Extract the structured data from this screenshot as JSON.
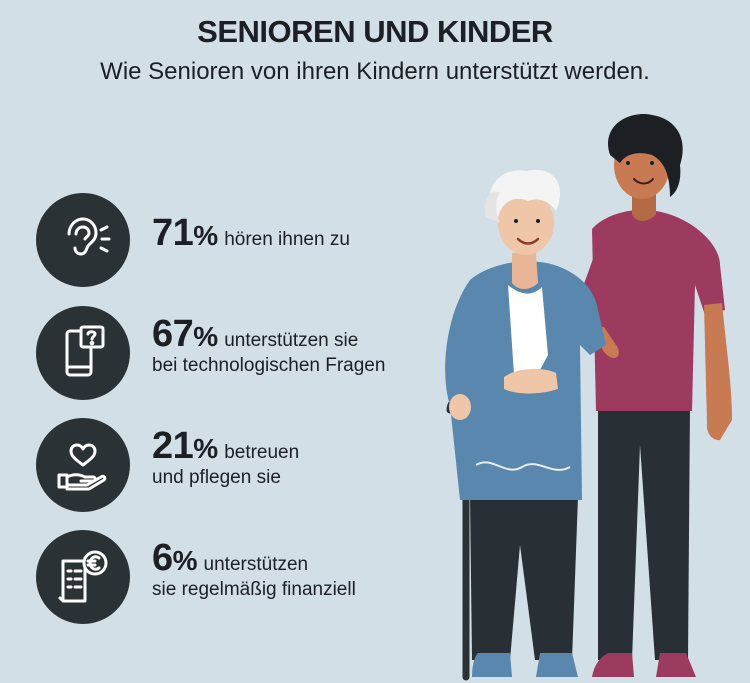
{
  "chart_data": {
    "type": "table",
    "title": "SENIOREN UND KINDER",
    "subtitle": "Wie Senioren von ihren Kindern unterstützt werden.",
    "items": [
      {
        "value": 71,
        "unit": "%",
        "line1": "hören ihnen zu",
        "line2": "",
        "icon": "ear-icon"
      },
      {
        "value": 67,
        "unit": "%",
        "line1": "unterstützen sie",
        "line2": "bei technologischen Fragen",
        "icon": "smartphone-question-icon"
      },
      {
        "value": 21,
        "unit": "%",
        "line1": "betreuen",
        "line2": "und pflegen sie",
        "icon": "heart-hand-icon"
      },
      {
        "value": 6,
        "unit": "%",
        "line1": "unterstützen",
        "line2": "sie regelmäßig finanziell",
        "icon": "euro-receipt-icon"
      }
    ]
  },
  "colors": {
    "background": "#d3dfe7",
    "icon_circle": "#2b3236",
    "text": "#1c1f23",
    "senior_cardigan": "#5a87ae",
    "young_shirt": "#9c3a5f"
  }
}
